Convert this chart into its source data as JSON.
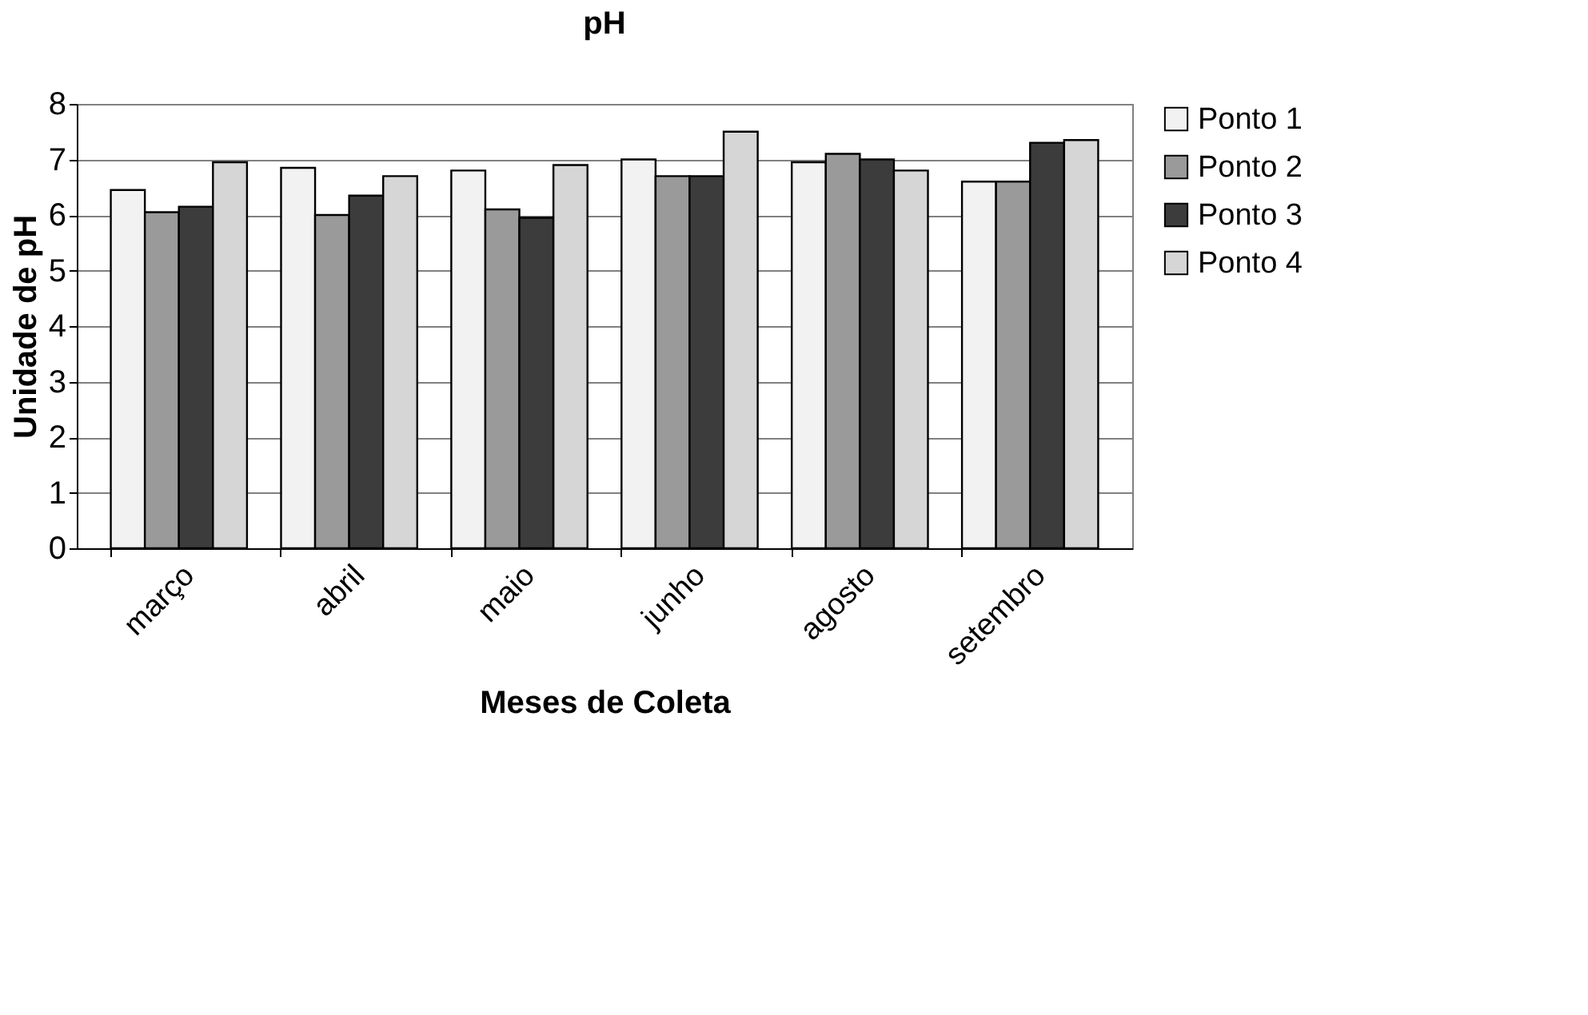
{
  "chart_data": {
    "type": "bar",
    "title": "pH",
    "xlabel": "Meses de Coleta",
    "ylabel": "Unidade de pH",
    "categories": [
      "março",
      "abril",
      "maio",
      "junho",
      "agosto",
      "setembro"
    ],
    "series": [
      {
        "name": "Ponto 1",
        "color": "#f2f2f2",
        "values": [
          6.45,
          6.85,
          6.8,
          7.0,
          6.95,
          6.6
        ]
      },
      {
        "name": "Ponto 2",
        "color": "#9a9a9a",
        "values": [
          6.05,
          6.0,
          6.1,
          6.7,
          7.1,
          6.6
        ]
      },
      {
        "name": "Ponto 3",
        "color": "#3c3c3c",
        "values": [
          6.15,
          6.35,
          5.95,
          6.7,
          7.0,
          7.3
        ]
      },
      {
        "name": "Ponto 4",
        "color": "#d6d6d6",
        "values": [
          6.95,
          6.7,
          6.9,
          7.5,
          6.8,
          7.35
        ]
      }
    ],
    "ylim": [
      0,
      8
    ],
    "yticks": [
      0,
      1,
      2,
      3,
      4,
      5,
      6,
      7,
      8
    ],
    "grid": "y",
    "legend": "right"
  }
}
